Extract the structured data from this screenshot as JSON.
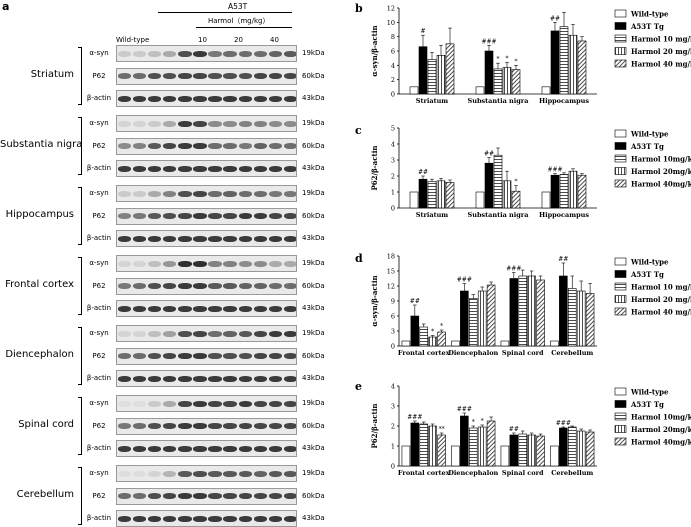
{
  "panel_a": {
    "letter": "a",
    "header": {
      "wild_type": "Wild-type",
      "a53t": "A53T",
      "harmol": "Harmol（mg/kg）",
      "doses": [
        "10",
        "20",
        "40"
      ]
    },
    "regions": [
      {
        "name": "Striatum",
        "rows": [
          {
            "label": "α-syn",
            "kda": "19kDa",
            "intensities": [
              0.15,
              0.15,
              0.2,
              0.3,
              0.75,
              0.85,
              0.55,
              0.6,
              0.6,
              0.6,
              0.65,
              0.7
            ]
          },
          {
            "label": "P62",
            "kda": "60kDa",
            "intensities": [
              0.6,
              0.6,
              0.75,
              0.75,
              0.8,
              0.8,
              0.75,
              0.75,
              0.75,
              0.8,
              0.8,
              0.8
            ]
          },
          {
            "label": "β-actin",
            "kda": "43kDa",
            "intensities": [
              0.85,
              0.85,
              0.85,
              0.85,
              0.85,
              0.85,
              0.85,
              0.85,
              0.85,
              0.85,
              0.85,
              0.85
            ]
          }
        ]
      },
      {
        "name": "Substantia nigra",
        "rows": [
          {
            "label": "α-syn",
            "kda": "19kDa",
            "intensities": [
              0.1,
              0.1,
              0.15,
              0.3,
              0.85,
              0.8,
              0.45,
              0.45,
              0.5,
              0.5,
              0.45,
              0.45
            ]
          },
          {
            "label": "P62",
            "kda": "60kDa",
            "intensities": [
              0.45,
              0.5,
              0.7,
              0.8,
              0.85,
              0.85,
              0.6,
              0.6,
              0.55,
              0.65,
              0.6,
              0.6
            ]
          },
          {
            "label": "β-actin",
            "kda": "43kDa",
            "intensities": [
              0.85,
              0.85,
              0.85,
              0.85,
              0.85,
              0.85,
              0.85,
              0.85,
              0.85,
              0.85,
              0.85,
              0.85
            ]
          }
        ]
      },
      {
        "name": "Hippocampus",
        "rows": [
          {
            "label": "α-syn",
            "kda": "19kDa",
            "intensities": [
              0.15,
              0.15,
              0.3,
              0.5,
              0.75,
              0.8,
              0.6,
              0.65,
              0.6,
              0.6,
              0.55,
              0.55
            ]
          },
          {
            "label": "P62",
            "kda": "60kDa",
            "intensities": [
              0.5,
              0.55,
              0.7,
              0.75,
              0.8,
              0.85,
              0.8,
              0.8,
              0.85,
              0.85,
              0.8,
              0.8
            ]
          },
          {
            "label": "β-actin",
            "kda": "43kDa",
            "intensities": [
              0.85,
              0.85,
              0.85,
              0.85,
              0.85,
              0.85,
              0.85,
              0.85,
              0.85,
              0.85,
              0.85,
              0.85
            ]
          }
        ]
      },
      {
        "name": "Frontal cortex",
        "rows": [
          {
            "label": "α-syn",
            "kda": "19kDa",
            "intensities": [
              0.1,
              0.1,
              0.2,
              0.4,
              0.9,
              0.9,
              0.5,
              0.5,
              0.45,
              0.45,
              0.3,
              0.3
            ]
          },
          {
            "label": "P62",
            "kda": "60kDa",
            "intensities": [
              0.55,
              0.6,
              0.75,
              0.8,
              0.85,
              0.85,
              0.7,
              0.7,
              0.65,
              0.65,
              0.6,
              0.6
            ]
          },
          {
            "label": "β-actin",
            "kda": "43kDa",
            "intensities": [
              0.85,
              0.85,
              0.85,
              0.85,
              0.85,
              0.85,
              0.85,
              0.85,
              0.85,
              0.85,
              0.85,
              0.85
            ]
          }
        ]
      },
      {
        "name": "Diencephalon",
        "rows": [
          {
            "label": "α-syn",
            "kda": "19kDa",
            "intensities": [
              0.1,
              0.1,
              0.2,
              0.35,
              0.75,
              0.8,
              0.6,
              0.65,
              0.7,
              0.8,
              0.85,
              0.85
            ]
          },
          {
            "label": "P62",
            "kda": "60kDa",
            "intensities": [
              0.6,
              0.6,
              0.75,
              0.8,
              0.85,
              0.85,
              0.75,
              0.75,
              0.75,
              0.8,
              0.8,
              0.8
            ]
          },
          {
            "label": "β-actin",
            "kda": "43kDa",
            "intensities": [
              0.85,
              0.85,
              0.85,
              0.85,
              0.85,
              0.85,
              0.85,
              0.85,
              0.85,
              0.85,
              0.85,
              0.85
            ]
          }
        ]
      },
      {
        "name": "Spinal cord",
        "rows": [
          {
            "label": "α-syn",
            "kda": "19kDa",
            "intensities": [
              0.05,
              0.05,
              0.15,
              0.3,
              0.8,
              0.85,
              0.8,
              0.8,
              0.85,
              0.8,
              0.8,
              0.8
            ]
          },
          {
            "label": "P62",
            "kda": "60kDa",
            "intensities": [
              0.55,
              0.6,
              0.75,
              0.8,
              0.85,
              0.85,
              0.8,
              0.8,
              0.8,
              0.8,
              0.8,
              0.8
            ]
          },
          {
            "label": "β-actin",
            "kda": "43kDa",
            "intensities": [
              0.85,
              0.85,
              0.85,
              0.85,
              0.85,
              0.85,
              0.85,
              0.85,
              0.85,
              0.85,
              0.85,
              0.85
            ]
          }
        ]
      },
      {
        "name": "Cerebellum",
        "rows": [
          {
            "label": "α-syn",
            "kda": "19kDa",
            "intensities": [
              0.05,
              0.05,
              0.1,
              0.25,
              0.7,
              0.75,
              0.7,
              0.7,
              0.7,
              0.65,
              0.7,
              0.7
            ]
          },
          {
            "label": "P62",
            "kda": "60kDa",
            "intensities": [
              0.6,
              0.6,
              0.75,
              0.8,
              0.85,
              0.85,
              0.8,
              0.8,
              0.8,
              0.8,
              0.8,
              0.8
            ]
          },
          {
            "label": "β-actin",
            "kda": "43kDa",
            "intensities": [
              0.85,
              0.85,
              0.85,
              0.85,
              0.85,
              0.85,
              0.85,
              0.85,
              0.85,
              0.85,
              0.85,
              0.85
            ]
          }
        ]
      }
    ]
  },
  "chart_data": [
    {
      "panel": "b",
      "type": "bar",
      "ylabel": "α-syn/β-actin",
      "ylim": [
        0,
        12
      ],
      "yticks": [
        0,
        2,
        4,
        6,
        8,
        10,
        12
      ],
      "categories": [
        "Striatum",
        "Substantia nigra",
        "Hippocampus"
      ],
      "series": [
        {
          "name": "Wild-type",
          "values": [
            1.0,
            1.0,
            1.0
          ],
          "errors": [
            0,
            0,
            0
          ],
          "marks": [
            "",
            "",
            ""
          ]
        },
        {
          "name": "A53T Tg",
          "values": [
            6.6,
            6.0,
            8.8
          ],
          "errors": [
            1.6,
            0.8,
            1.2
          ],
          "marks": [
            "#",
            "###",
            "##"
          ]
        },
        {
          "name": "Harmol 10 mg/kg",
          "values": [
            4.8,
            3.5,
            9.4
          ],
          "errors": [
            1.0,
            0.8,
            2.0
          ],
          "marks": [
            "",
            "*",
            ""
          ]
        },
        {
          "name": "Harmol 20 mg/kg",
          "values": [
            5.4,
            3.7,
            8.2
          ],
          "errors": [
            1.4,
            0.7,
            1.5
          ],
          "marks": [
            "",
            "*",
            ""
          ]
        },
        {
          "name": "Harmol 40 mg/kg",
          "values": [
            7.0,
            3.4,
            7.4
          ],
          "errors": [
            2.2,
            0.6,
            0.6
          ],
          "marks": [
            "",
            "*",
            ""
          ]
        }
      ]
    },
    {
      "panel": "c",
      "type": "bar",
      "ylabel": "P62/β-actin",
      "ylim": [
        0,
        5
      ],
      "yticks": [
        0,
        1,
        2,
        3,
        4,
        5
      ],
      "categories": [
        "Striatum",
        "Substantia nigra",
        "Hippocampus"
      ],
      "series": [
        {
          "name": "Wild-type",
          "values": [
            1.0,
            1.0,
            1.0
          ],
          "errors": [
            0,
            0,
            0
          ],
          "marks": [
            "",
            "",
            ""
          ]
        },
        {
          "name": "A53T Tg",
          "values": [
            1.8,
            2.8,
            2.05
          ],
          "errors": [
            0.2,
            0.35,
            0.1
          ],
          "marks": [
            "##",
            "##",
            "###"
          ]
        },
        {
          "name": "Harmol 10mg/kg",
          "values": [
            1.65,
            3.3,
            2.1
          ],
          "errors": [
            0.15,
            0.45,
            0.1
          ],
          "marks": [
            "",
            "",
            ""
          ]
        },
        {
          "name": "Harmol 20mg/kg",
          "values": [
            1.7,
            1.7,
            2.3
          ],
          "errors": [
            0.15,
            0.6,
            0.15
          ],
          "marks": [
            "",
            "",
            ""
          ]
        },
        {
          "name": "Harmol 40mg/kg",
          "values": [
            1.6,
            1.05,
            2.05
          ],
          "errors": [
            0.15,
            0.35,
            0.1
          ],
          "marks": [
            "",
            "*",
            ""
          ]
        }
      ]
    },
    {
      "panel": "d",
      "type": "bar",
      "ylabel": "α-syn/β-actin",
      "ylim": [
        0,
        18
      ],
      "yticks": [
        0,
        3,
        6,
        9,
        12,
        15,
        18
      ],
      "categories": [
        "Frontal cortex",
        "Diencephalon",
        "Spinal cord",
        "Cerebellum"
      ],
      "series": [
        {
          "name": "Wild-type",
          "values": [
            1.0,
            1.0,
            1.0,
            1.0
          ],
          "errors": [
            0,
            0,
            0,
            0
          ],
          "marks": [
            "",
            "",
            "",
            ""
          ]
        },
        {
          "name": "A53T Tg",
          "values": [
            6.0,
            11.0,
            13.5,
            14.0
          ],
          "errors": [
            2.2,
            1.5,
            1.2,
            2.6
          ],
          "marks": [
            "##",
            "###",
            "###",
            "##"
          ]
        },
        {
          "name": "Harmol 10 mg/kg",
          "values": [
            3.8,
            9.5,
            14.0,
            11.5
          ],
          "errors": [
            0.6,
            0.8,
            1.2,
            2.5
          ],
          "marks": [
            "",
            "",
            "",
            ""
          ]
        },
        {
          "name": "Harmol 20 mg/kg",
          "values": [
            1.8,
            11.0,
            14.0,
            11.0
          ],
          "errors": [
            0.3,
            0.8,
            1.0,
            2.0
          ],
          "marks": [
            "*",
            "",
            "",
            ""
          ]
        },
        {
          "name": "Harmol 40 mg/kg",
          "values": [
            2.8,
            12.2,
            13.2,
            10.5
          ],
          "errors": [
            0.4,
            0.6,
            0.8,
            2.0
          ],
          "marks": [
            "*",
            "",
            "",
            ""
          ]
        }
      ]
    },
    {
      "panel": "e",
      "type": "bar",
      "ylabel": "P62/β-actin",
      "ylim": [
        0,
        4
      ],
      "yticks": [
        0,
        1,
        2,
        3,
        4
      ],
      "categories": [
        "Frontal cortex",
        "Diencephalon",
        "Spinal cord",
        "Cerebellum"
      ],
      "series": [
        {
          "name": "Wild-type",
          "values": [
            1.0,
            1.0,
            1.0,
            1.0
          ],
          "errors": [
            0,
            0,
            0,
            0
          ],
          "marks": [
            "",
            "",
            "",
            ""
          ]
        },
        {
          "name": "A53T Tg",
          "values": [
            2.15,
            2.5,
            1.55,
            1.9
          ],
          "errors": [
            0.1,
            0.15,
            0.1,
            0.05
          ],
          "marks": [
            "###",
            "###",
            "##",
            "###"
          ]
        },
        {
          "name": "Harmol 10mg/kg",
          "values": [
            2.1,
            1.9,
            1.6,
            1.95
          ],
          "errors": [
            0.1,
            0.1,
            0.15,
            0.05
          ],
          "marks": [
            "",
            "*",
            "",
            ""
          ]
        },
        {
          "name": "Harmol 20mg/kg",
          "values": [
            2.0,
            1.95,
            1.55,
            1.75
          ],
          "errors": [
            0.1,
            0.1,
            0.1,
            0.1
          ],
          "marks": [
            "",
            "*",
            "",
            ""
          ]
        },
        {
          "name": "Harmol 40mg/kg",
          "values": [
            1.55,
            2.25,
            1.5,
            1.7
          ],
          "errors": [
            0.1,
            0.2,
            0.1,
            0.1
          ],
          "marks": [
            "**",
            "",
            "",
            ""
          ]
        }
      ]
    }
  ],
  "colors": {
    "wild_type": "#ffffff",
    "a53t": "#000000",
    "stroke": "#000000",
    "band": "#1b1b1b"
  }
}
